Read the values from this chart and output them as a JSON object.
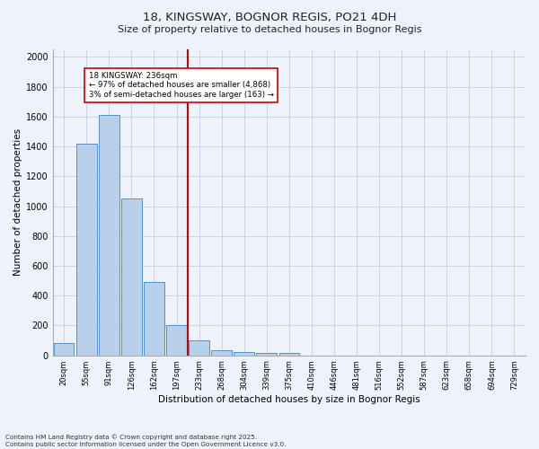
{
  "title1": "18, KINGSWAY, BOGNOR REGIS, PO21 4DH",
  "title2": "Size of property relative to detached houses in Bognor Regis",
  "xlabel": "Distribution of detached houses by size in Bognor Regis",
  "ylabel": "Number of detached properties",
  "bin_labels": [
    "20sqm",
    "55sqm",
    "91sqm",
    "126sqm",
    "162sqm",
    "197sqm",
    "233sqm",
    "268sqm",
    "304sqm",
    "339sqm",
    "375sqm",
    "410sqm",
    "446sqm",
    "481sqm",
    "516sqm",
    "552sqm",
    "587sqm",
    "623sqm",
    "658sqm",
    "694sqm",
    "729sqm"
  ],
  "bar_values": [
    80,
    1420,
    1610,
    1050,
    490,
    205,
    100,
    35,
    25,
    18,
    18,
    0,
    0,
    0,
    0,
    0,
    0,
    0,
    0,
    0,
    0
  ],
  "bar_color": "#b8d0ea",
  "bar_edge_color": "#5590c8",
  "subject_line_index": 6,
  "subject_line_color": "#cc0000",
  "annotation_text": "18 KINGSWAY: 236sqm\n← 97% of detached houses are smaller (4,868)\n3% of semi-detached houses are larger (163) →",
  "annotation_box_color": "white",
  "annotation_box_edge_color": "#cc0000",
  "ylim": [
    0,
    2050
  ],
  "yticks": [
    0,
    200,
    400,
    600,
    800,
    1000,
    1200,
    1400,
    1600,
    1800,
    2000
  ],
  "footer_text": "Contains HM Land Registry data © Crown copyright and database right 2025.\nContains public sector information licensed under the Open Government Licence v3.0.",
  "bg_color": "#eef2fa",
  "grid_color": "#c5cfe0"
}
